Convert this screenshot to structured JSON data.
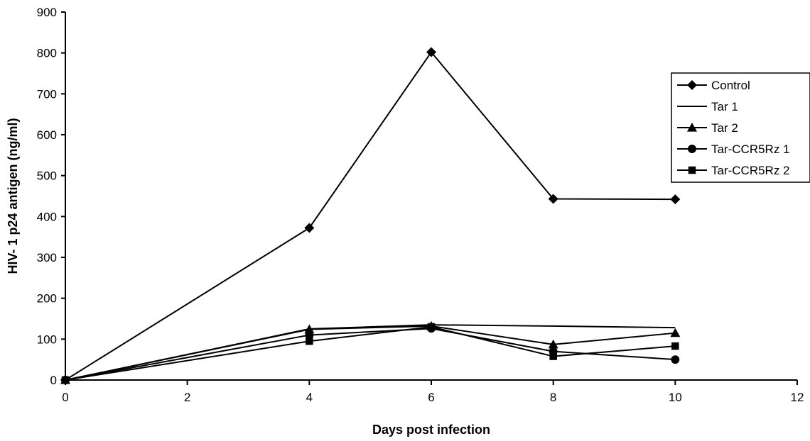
{
  "chart_data": {
    "type": "line",
    "title": "",
    "xlabel": "Days post infection",
    "ylabel": "HIV- 1 p24 antigen (ng/ml)",
    "xlim": [
      0,
      12
    ],
    "ylim": [
      0,
      900
    ],
    "xticks": [
      0,
      2,
      4,
      6,
      8,
      10,
      12
    ],
    "yticks": [
      0,
      100,
      200,
      300,
      400,
      500,
      600,
      700,
      800,
      900
    ],
    "grid": false,
    "legend_position": "right",
    "x": [
      0,
      4,
      6,
      8,
      10
    ],
    "series": [
      {
        "name": "Control",
        "marker": "diamond",
        "values": [
          0,
          372,
          802,
          443,
          442
        ]
      },
      {
        "name": "Tar 1",
        "marker": "none",
        "values": [
          0,
          125,
          135,
          132,
          128
        ]
      },
      {
        "name": "Tar 2",
        "marker": "triangle",
        "values": [
          0,
          124,
          132,
          87,
          115
        ]
      },
      {
        "name": "Tar-CCR5Rz 1",
        "marker": "circle",
        "values": [
          0,
          110,
          126,
          70,
          50
        ]
      },
      {
        "name": "Tar-CCR5Rz 2",
        "marker": "square",
        "values": [
          0,
          95,
          130,
          58,
          83
        ]
      }
    ]
  }
}
